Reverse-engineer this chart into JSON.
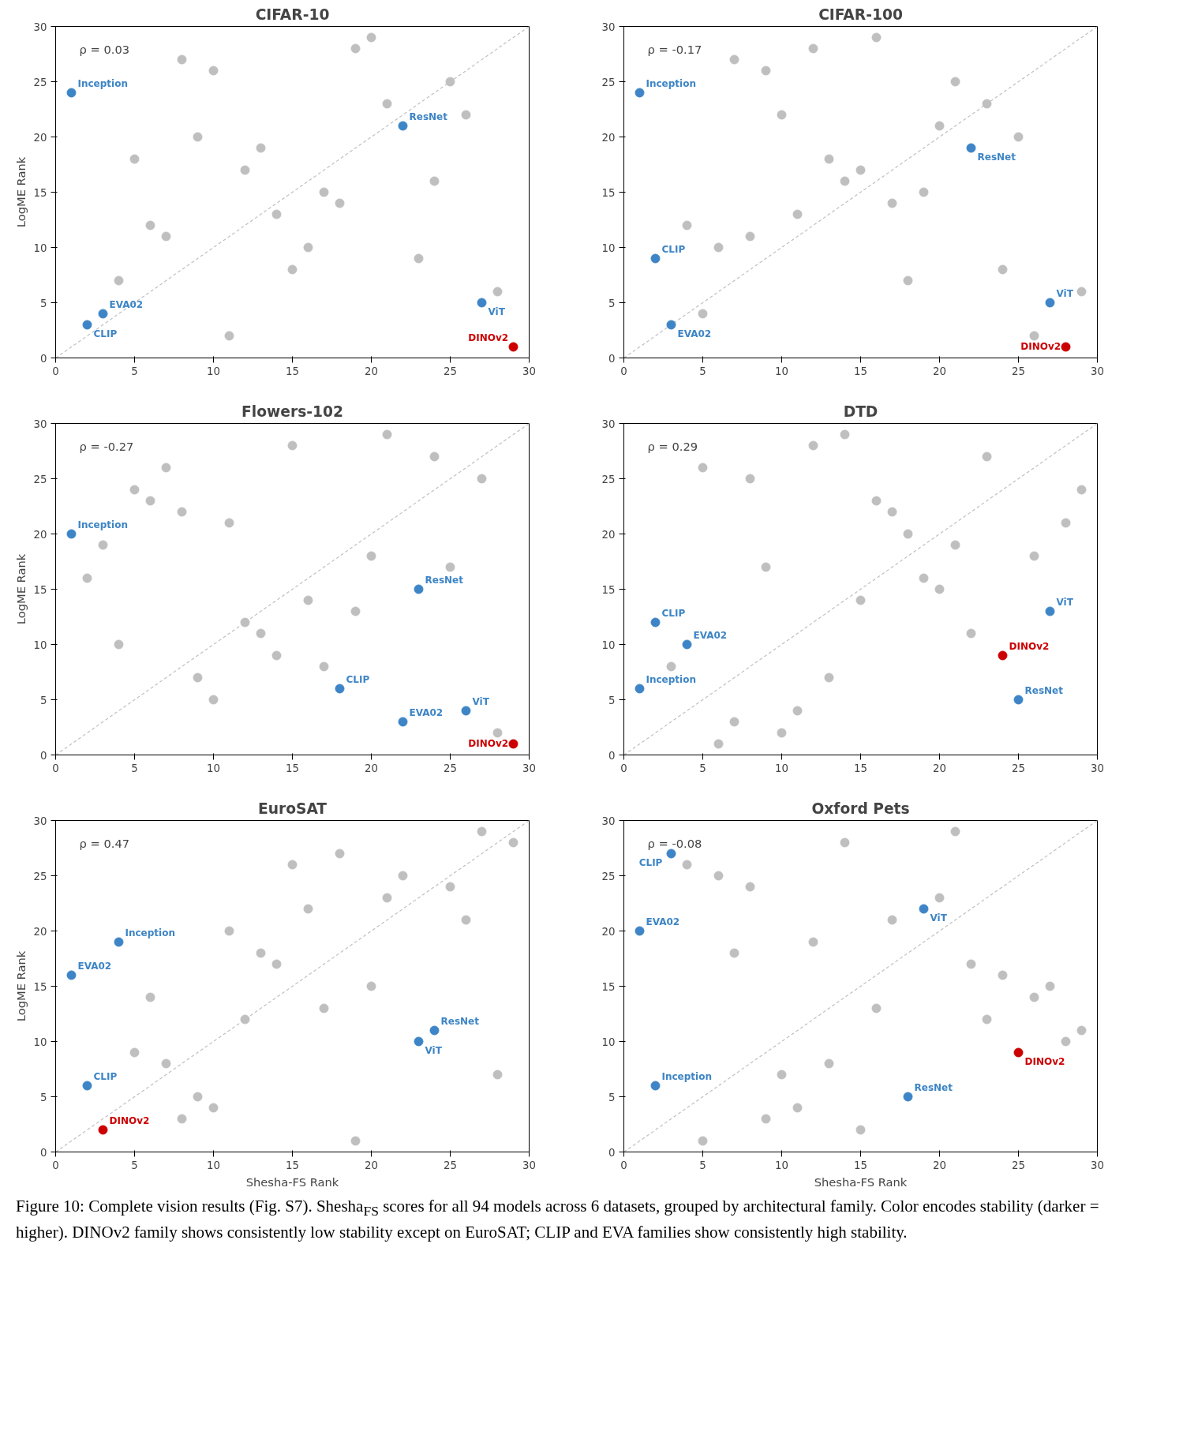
{
  "chart_data": [
    {
      "type": "scatter",
      "title": "CIFAR-10",
      "ylabel": "LogME Rank",
      "xlim": [
        0,
        30
      ],
      "ylim": [
        0,
        30
      ],
      "xticks": [
        0,
        5,
        10,
        15,
        20,
        25,
        30
      ],
      "yticks": [
        0,
        5,
        10,
        15,
        20,
        25,
        30
      ],
      "marker": "circle",
      "annotations": [
        "ρ = 0.03"
      ],
      "series": [
        {
          "type": "line",
          "marker": "none",
          "color": "#c0c0c0",
          "line_style": "dashed",
          "x": [
            0,
            30
          ],
          "values": [
            0,
            30
          ]
        },
        {
          "color": "#bfbfbf",
          "x": [
            4,
            5,
            6,
            7,
            8,
            9,
            10,
            11,
            12,
            13,
            14,
            15,
            16,
            17,
            18,
            19,
            20,
            21,
            23,
            24,
            25,
            26,
            28
          ],
          "values": [
            7,
            18,
            12,
            11,
            27,
            20,
            26,
            2,
            17,
            19,
            13,
            8,
            10,
            15,
            14,
            28,
            29,
            23,
            9,
            16,
            25,
            22,
            6
          ]
        },
        {
          "name": "Inception",
          "color": "#3d85c6",
          "x": [
            1
          ],
          "values": [
            24
          ]
        },
        {
          "name": "CLIP",
          "color": "#3d85c6",
          "x": [
            2
          ],
          "values": [
            3
          ]
        },
        {
          "name": "EVA02",
          "color": "#3d85c6",
          "x": [
            3
          ],
          "values": [
            4
          ]
        },
        {
          "name": "ResNet",
          "color": "#3d85c6",
          "x": [
            22
          ],
          "values": [
            21
          ]
        },
        {
          "name": "ViT",
          "color": "#3d85c6",
          "x": [
            27
          ],
          "values": [
            5
          ]
        },
        {
          "name": "DINOv2",
          "color": "#cc0000",
          "x": [
            29
          ],
          "values": [
            1
          ]
        }
      ]
    },
    {
      "type": "scatter",
      "title": "CIFAR-100",
      "xlim": [
        0,
        30
      ],
      "ylim": [
        0,
        30
      ],
      "xticks": [
        0,
        5,
        10,
        15,
        20,
        25,
        30
      ],
      "yticks": [
        0,
        5,
        10,
        15,
        20,
        25,
        30
      ],
      "marker": "circle",
      "annotations": [
        "ρ = -0.17"
      ],
      "series": [
        {
          "type": "line",
          "marker": "none",
          "color": "#c0c0c0",
          "line_style": "dashed",
          "x": [
            0,
            30
          ],
          "values": [
            0,
            30
          ]
        },
        {
          "color": "#bfbfbf",
          "x": [
            4,
            5,
            6,
            7,
            8,
            9,
            10,
            11,
            12,
            13,
            14,
            15,
            16,
            17,
            18,
            19,
            20,
            21,
            23,
            24,
            25,
            26,
            29
          ],
          "values": [
            12,
            4,
            10,
            27,
            11,
            26,
            22,
            13,
            28,
            18,
            16,
            17,
            29,
            14,
            7,
            15,
            21,
            25,
            23,
            8,
            20,
            2,
            6
          ]
        },
        {
          "name": "Inception",
          "color": "#3d85c6",
          "x": [
            1
          ],
          "values": [
            24
          ]
        },
        {
          "name": "CLIP",
          "color": "#3d85c6",
          "x": [
            2
          ],
          "values": [
            9
          ]
        },
        {
          "name": "EVA02",
          "color": "#3d85c6",
          "x": [
            3
          ],
          "values": [
            3
          ]
        },
        {
          "name": "ResNet",
          "color": "#3d85c6",
          "x": [
            22
          ],
          "values": [
            19
          ]
        },
        {
          "name": "ViT",
          "color": "#3d85c6",
          "x": [
            27
          ],
          "values": [
            5
          ]
        },
        {
          "name": "DINOv2",
          "color": "#cc0000",
          "x": [
            28
          ],
          "values": [
            1
          ]
        }
      ]
    },
    {
      "type": "scatter",
      "title": "Flowers-102",
      "ylabel": "LogME Rank",
      "xlim": [
        0,
        30
      ],
      "ylim": [
        0,
        30
      ],
      "xticks": [
        0,
        5,
        10,
        15,
        20,
        25,
        30
      ],
      "yticks": [
        0,
        5,
        10,
        15,
        20,
        25,
        30
      ],
      "marker": "circle",
      "annotations": [
        "ρ = -0.27"
      ],
      "series": [
        {
          "type": "line",
          "marker": "none",
          "color": "#c0c0c0",
          "line_style": "dashed",
          "x": [
            0,
            30
          ],
          "values": [
            0,
            30
          ]
        },
        {
          "color": "#bfbfbf",
          "x": [
            2,
            3,
            4,
            5,
            6,
            7,
            8,
            9,
            10,
            11,
            12,
            13,
            14,
            15,
            16,
            17,
            19,
            20,
            21,
            24,
            25,
            27,
            28
          ],
          "values": [
            16,
            19,
            10,
            24,
            23,
            26,
            22,
            7,
            5,
            21,
            12,
            11,
            9,
            28,
            14,
            8,
            13,
            18,
            29,
            27,
            17,
            25,
            2
          ]
        },
        {
          "name": "Inception",
          "color": "#3d85c6",
          "x": [
            1
          ],
          "values": [
            20
          ]
        },
        {
          "name": "CLIP",
          "color": "#3d85c6",
          "x": [
            18
          ],
          "values": [
            6
          ]
        },
        {
          "name": "EVA02",
          "color": "#3d85c6",
          "x": [
            22
          ],
          "values": [
            3
          ]
        },
        {
          "name": "ResNet",
          "color": "#3d85c6",
          "x": [
            23
          ],
          "values": [
            15
          ]
        },
        {
          "name": "ViT",
          "color": "#3d85c6",
          "x": [
            26
          ],
          "values": [
            4
          ]
        },
        {
          "name": "DINOv2",
          "color": "#cc0000",
          "x": [
            29
          ],
          "values": [
            1
          ]
        }
      ]
    },
    {
      "type": "scatter",
      "title": "DTD",
      "xlim": [
        0,
        30
      ],
      "ylim": [
        0,
        30
      ],
      "xticks": [
        0,
        5,
        10,
        15,
        20,
        25,
        30
      ],
      "yticks": [
        0,
        5,
        10,
        15,
        20,
        25,
        30
      ],
      "marker": "circle",
      "annotations": [
        "ρ = 0.29"
      ],
      "series": [
        {
          "type": "line",
          "marker": "none",
          "color": "#c0c0c0",
          "line_style": "dashed",
          "x": [
            0,
            30
          ],
          "values": [
            0,
            30
          ]
        },
        {
          "color": "#bfbfbf",
          "x": [
            3,
            5,
            6,
            7,
            8,
            9,
            10,
            11,
            12,
            13,
            14,
            15,
            16,
            17,
            18,
            19,
            20,
            21,
            22,
            23,
            26,
            28,
            29
          ],
          "values": [
            8,
            26,
            1,
            3,
            25,
            17,
            2,
            4,
            28,
            7,
            29,
            14,
            23,
            22,
            20,
            16,
            15,
            19,
            11,
            27,
            18,
            21,
            24
          ]
        },
        {
          "name": "Inception",
          "color": "#3d85c6",
          "x": [
            1
          ],
          "values": [
            6
          ]
        },
        {
          "name": "CLIP",
          "color": "#3d85c6",
          "x": [
            2
          ],
          "values": [
            12
          ]
        },
        {
          "name": "EVA02",
          "color": "#3d85c6",
          "x": [
            4
          ],
          "values": [
            10
          ]
        },
        {
          "name": "DINOv2",
          "color": "#cc0000",
          "x": [
            24
          ],
          "values": [
            9
          ]
        },
        {
          "name": "ResNet",
          "color": "#3d85c6",
          "x": [
            25
          ],
          "values": [
            5
          ]
        },
        {
          "name": "ViT",
          "color": "#3d85c6",
          "x": [
            27
          ],
          "values": [
            13
          ]
        }
      ]
    },
    {
      "type": "scatter",
      "title": "EuroSAT",
      "xlabel": "Shesha-FS Rank",
      "ylabel": "LogME Rank",
      "xlim": [
        0,
        30
      ],
      "ylim": [
        0,
        30
      ],
      "xticks": [
        0,
        5,
        10,
        15,
        20,
        25,
        30
      ],
      "yticks": [
        0,
        5,
        10,
        15,
        20,
        25,
        30
      ],
      "marker": "circle",
      "annotations": [
        "ρ = 0.47"
      ],
      "series": [
        {
          "type": "line",
          "marker": "none",
          "color": "#c0c0c0",
          "line_style": "dashed",
          "x": [
            0,
            30
          ],
          "values": [
            0,
            30
          ]
        },
        {
          "color": "#bfbfbf",
          "x": [
            5,
            6,
            7,
            8,
            9,
            10,
            11,
            12,
            13,
            14,
            15,
            16,
            17,
            18,
            19,
            20,
            21,
            22,
            25,
            26,
            27,
            28,
            29
          ],
          "values": [
            9,
            14,
            8,
            3,
            5,
            4,
            20,
            12,
            18,
            17,
            26,
            22,
            13,
            27,
            1,
            15,
            23,
            25,
            24,
            21,
            29,
            7,
            28
          ]
        },
        {
          "name": "EVA02",
          "color": "#3d85c6",
          "x": [
            1
          ],
          "values": [
            16
          ]
        },
        {
          "name": "CLIP",
          "color": "#3d85c6",
          "x": [
            2
          ],
          "values": [
            6
          ]
        },
        {
          "name": "DINOv2",
          "color": "#cc0000",
          "x": [
            3
          ],
          "values": [
            2
          ]
        },
        {
          "name": "Inception",
          "color": "#3d85c6",
          "x": [
            4
          ],
          "values": [
            19
          ]
        },
        {
          "name": "ViT",
          "color": "#3d85c6",
          "x": [
            23
          ],
          "values": [
            10
          ]
        },
        {
          "name": "ResNet",
          "color": "#3d85c6",
          "x": [
            24
          ],
          "values": [
            11
          ]
        }
      ]
    },
    {
      "type": "scatter",
      "title": "Oxford Pets",
      "xlabel": "Shesha-FS Rank",
      "xlim": [
        0,
        30
      ],
      "ylim": [
        0,
        30
      ],
      "xticks": [
        0,
        5,
        10,
        15,
        20,
        25,
        30
      ],
      "yticks": [
        0,
        5,
        10,
        15,
        20,
        25,
        30
      ],
      "marker": "circle",
      "annotations": [
        "ρ = -0.08"
      ],
      "series": [
        {
          "type": "line",
          "marker": "none",
          "color": "#c0c0c0",
          "line_style": "dashed",
          "x": [
            0,
            30
          ],
          "values": [
            0,
            30
          ]
        },
        {
          "color": "#bfbfbf",
          "x": [
            4,
            5,
            6,
            7,
            8,
            9,
            10,
            11,
            12,
            13,
            14,
            15,
            16,
            17,
            20,
            21,
            22,
            23,
            24,
            26,
            27,
            28,
            29
          ],
          "values": [
            26,
            1,
            25,
            18,
            24,
            3,
            7,
            4,
            19,
            8,
            28,
            2,
            13,
            21,
            23,
            29,
            17,
            12,
            16,
            14,
            15,
            10,
            11
          ]
        },
        {
          "name": "EVA02",
          "color": "#3d85c6",
          "x": [
            1
          ],
          "values": [
            20
          ]
        },
        {
          "name": "Inception",
          "color": "#3d85c6",
          "x": [
            2
          ],
          "values": [
            6
          ]
        },
        {
          "name": "CLIP",
          "color": "#3d85c6",
          "x": [
            3
          ],
          "values": [
            27
          ]
        },
        {
          "name": "ResNet",
          "color": "#3d85c6",
          "x": [
            18
          ],
          "values": [
            5
          ]
        },
        {
          "name": "ViT",
          "color": "#3d85c6",
          "x": [
            19
          ],
          "values": [
            22
          ]
        },
        {
          "name": "DINOv2",
          "color": "#cc0000",
          "x": [
            25
          ],
          "values": [
            9
          ]
        }
      ]
    },
    {
      "type": "other",
      "annotations": [
        "Figure 10: Complete vision results (Fig. S7). Shesha$_{FS}$ scores for all 94 models across 6 datasets, grouped by architectural family. Color encodes stability (darker = higher). DINOv2 family shows consistently low stability except on EuroSAT; CLIP and EVA families show consistently high stability."
      ]
    }
  ]
}
